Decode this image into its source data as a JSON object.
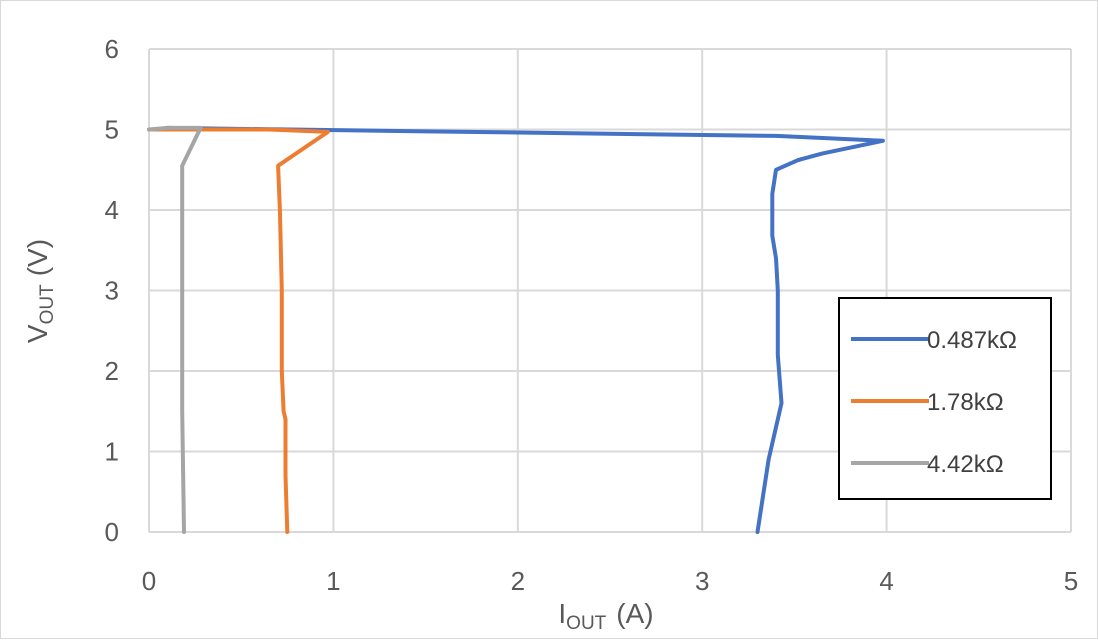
{
  "chart_data": {
    "type": "line",
    "title": "",
    "xlabel": {
      "main": "I",
      "sub": "OUT",
      "unit": "(A)"
    },
    "ylabel": {
      "main": "V",
      "sub": "OUT",
      "unit": "(V)"
    },
    "xlim": [
      0,
      5
    ],
    "ylim": [
      0,
      6
    ],
    "x_ticks": [
      "0",
      "1",
      "2",
      "3",
      "4",
      "5"
    ],
    "y_ticks": [
      "0",
      "1",
      "2",
      "3",
      "4",
      "5",
      "6"
    ],
    "grid": true,
    "legend_position": "right",
    "series": [
      {
        "name": "0.487kΩ",
        "color": "#4472C4",
        "points": [
          [
            0.1,
            5.02
          ],
          [
            1.4,
            4.98
          ],
          [
            3.4,
            4.92
          ],
          [
            3.98,
            4.86
          ],
          [
            3.65,
            4.7
          ],
          [
            3.52,
            4.62
          ],
          [
            3.4,
            4.5
          ],
          [
            3.38,
            4.2
          ],
          [
            3.38,
            3.68
          ],
          [
            3.4,
            3.4
          ],
          [
            3.41,
            3.0
          ],
          [
            3.41,
            2.2
          ],
          [
            3.43,
            1.6
          ],
          [
            3.36,
            0.9
          ],
          [
            3.3,
            0.0
          ]
        ]
      },
      {
        "name": "1.78kΩ",
        "color": "#ED7D31",
        "points": [
          [
            0.0,
            5.0
          ],
          [
            0.65,
            5.0
          ],
          [
            0.97,
            4.97
          ],
          [
            0.7,
            4.55
          ],
          [
            0.71,
            4.0
          ],
          [
            0.72,
            3.0
          ],
          [
            0.72,
            2.0
          ],
          [
            0.73,
            1.5
          ],
          [
            0.74,
            1.4
          ],
          [
            0.74,
            0.7
          ],
          [
            0.75,
            0.0
          ]
        ]
      },
      {
        "name": "4.42kΩ",
        "color": "#A5A5A5",
        "points": [
          [
            0.0,
            5.0
          ],
          [
            0.1,
            5.02
          ],
          [
            0.28,
            5.02
          ],
          [
            0.18,
            4.55
          ],
          [
            0.18,
            3.0
          ],
          [
            0.18,
            1.5
          ],
          [
            0.19,
            0.0
          ]
        ]
      }
    ]
  }
}
